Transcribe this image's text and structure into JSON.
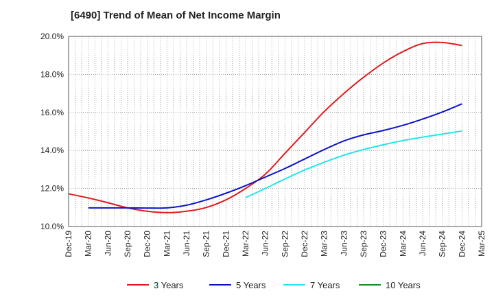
{
  "title": "[6490]  Trend of Mean of Net Income Margin",
  "chart_data": {
    "type": "line",
    "title": "[6490]  Trend of Mean of Net Income Margin",
    "xlabel": "",
    "ylabel": "",
    "x_ticks": [
      "Dec-19",
      "Mar-20",
      "Jun-20",
      "Sep-20",
      "Dec-20",
      "Mar-21",
      "Jun-21",
      "Sep-21",
      "Dec-21",
      "Mar-22",
      "Jun-22",
      "Sep-22",
      "Dec-22",
      "Mar-23",
      "Jun-23",
      "Sep-23",
      "Dec-23",
      "Mar-24",
      "Jun-24",
      "Sep-24",
      "Dec-24",
      "Mar-25"
    ],
    "y_ticks": [
      "10.0%",
      "12.0%",
      "14.0%",
      "16.0%",
      "18.0%",
      "20.0%"
    ],
    "ylim": [
      10,
      20
    ],
    "grid": "vertical dotted, horizontal dotted",
    "legend_position": "bottom",
    "series": [
      {
        "name": "3 Years",
        "color": "#e31a1c",
        "x": [
          "Dec-19",
          "Mar-20",
          "Jun-20",
          "Sep-20",
          "Dec-20",
          "Mar-21",
          "Jun-21",
          "Sep-21",
          "Dec-21",
          "Mar-22",
          "Jun-22",
          "Sep-22",
          "Dec-22",
          "Mar-23",
          "Jun-23",
          "Sep-23",
          "Dec-23",
          "Mar-24",
          "Jun-24",
          "Sep-24",
          "Dec-24"
        ],
        "values": [
          11.72,
          11.5,
          11.25,
          10.98,
          10.8,
          10.73,
          10.8,
          11.0,
          11.4,
          12.0,
          12.75,
          13.85,
          14.95,
          16.05,
          17.0,
          17.85,
          18.6,
          19.2,
          19.62,
          19.68,
          19.52
        ]
      },
      {
        "name": "5 Years",
        "color": "#0a14c8",
        "x": [
          "Mar-20",
          "Jun-20",
          "Sep-20",
          "Dec-20",
          "Mar-21",
          "Jun-21",
          "Sep-21",
          "Dec-21",
          "Mar-22",
          "Jun-22",
          "Sep-22",
          "Dec-22",
          "Mar-23",
          "Jun-23",
          "Sep-23",
          "Dec-23",
          "Mar-24",
          "Jun-24",
          "Sep-24",
          "Dec-24"
        ],
        "values": [
          10.98,
          10.98,
          10.98,
          10.97,
          10.98,
          11.12,
          11.4,
          11.75,
          12.15,
          12.6,
          13.05,
          13.55,
          14.05,
          14.5,
          14.82,
          15.05,
          15.32,
          15.65,
          16.02,
          16.45
        ]
      },
      {
        "name": "7 Years",
        "color": "#22e6ea",
        "x": [
          "Mar-22",
          "Jun-22",
          "Sep-22",
          "Dec-22",
          "Mar-23",
          "Jun-23",
          "Sep-23",
          "Dec-23",
          "Mar-24",
          "Jun-24",
          "Sep-24",
          "Dec-24"
        ],
        "values": [
          11.52,
          12.0,
          12.5,
          12.97,
          13.38,
          13.75,
          14.05,
          14.3,
          14.52,
          14.7,
          14.86,
          15.02
        ]
      },
      {
        "name": "10 Years",
        "color": "#1a8a1a",
        "x": [],
        "values": []
      }
    ]
  }
}
